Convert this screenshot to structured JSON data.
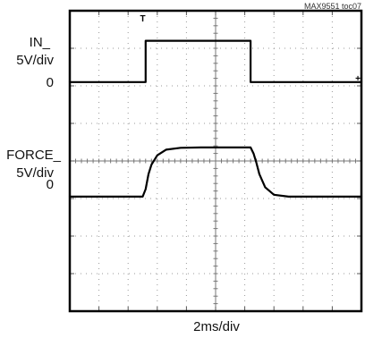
{
  "chart_data": {
    "type": "line",
    "title": "",
    "figure_id": "MAX9551 toc07",
    "xlabel": "2ms/div",
    "x_divisions": 10,
    "y_divisions": 8,
    "xlim": [
      0,
      10
    ],
    "ylim": [
      0,
      8
    ],
    "grid": true,
    "x_units": "div",
    "y_units": "div",
    "channels": [
      {
        "label_line1": "IN_",
        "label_line2": "5V/div",
        "ref_label": "0",
        "ref_level": 6.1
      },
      {
        "label_line1": "FORCE_",
        "label_line2": "5V/div",
        "ref_label": "0",
        "ref_level": 3.05
      }
    ],
    "series": [
      {
        "name": "IN_",
        "x": [
          0,
          2.6,
          2.6,
          6.2,
          6.2,
          10
        ],
        "y": [
          6.1,
          6.1,
          7.2,
          7.2,
          6.1,
          6.1
        ]
      },
      {
        "name": "FORCE_",
        "x": [
          0,
          2.5,
          2.6,
          2.7,
          2.8,
          3.0,
          3.3,
          3.8,
          4.5,
          6.2,
          6.3,
          6.4,
          6.5,
          6.7,
          7.0,
          7.5,
          8.0,
          10
        ],
        "y": [
          3.05,
          3.05,
          3.25,
          3.65,
          3.9,
          4.15,
          4.3,
          4.35,
          4.36,
          4.36,
          4.2,
          3.95,
          3.65,
          3.3,
          3.1,
          3.05,
          3.05,
          3.05
        ]
      }
    ],
    "trigger_marker": {
      "label": "T",
      "x": 2.5
    },
    "right_marker": {
      "label": "+",
      "level": 6.1
    }
  }
}
